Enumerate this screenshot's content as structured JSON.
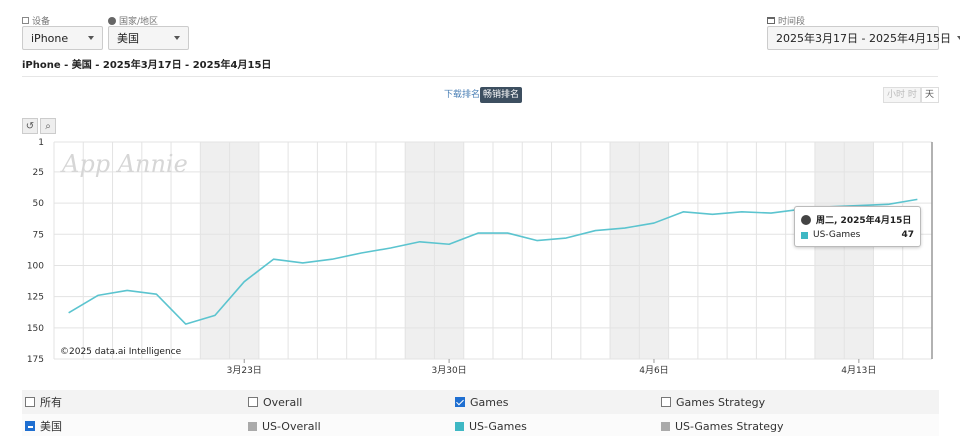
{
  "filters": {
    "device": {
      "label": "设备",
      "value": "iPhone",
      "icon": "checkbox-icon"
    },
    "country": {
      "label": "国家/地区",
      "value": "美国",
      "icon": "globe-icon"
    },
    "period": {
      "label": "时间段",
      "value": "2025年3月17日 - 2025年4月15日",
      "icon": "calendar-icon"
    }
  },
  "subtitle": "iPhone - 美国 - 2025年3月17日 - 2025年4月15日",
  "rank_toggle": {
    "download": "下载排名",
    "grossing": "畅销排名"
  },
  "granularity": {
    "hourly": "小时",
    "hourly_suffix": "时",
    "daily": "天"
  },
  "tools": {
    "reset": "reset-icon",
    "zoom": "zoom-icon"
  },
  "chart_data": {
    "type": "line",
    "title": "",
    "xlabel": "",
    "ylabel": "",
    "y_reversed": true,
    "ylim": [
      1,
      175
    ],
    "y_ticks": [
      1,
      25,
      50,
      75,
      100,
      125,
      150,
      175
    ],
    "x_tick_labels": [
      {
        "label": "3月23日",
        "day": 6
      },
      {
        "label": "3月30日",
        "day": 13
      },
      {
        "label": "4月6日",
        "day": 20
      },
      {
        "label": "4月13日",
        "day": 27
      }
    ],
    "weekend_day_ranges": [
      [
        5,
        7
      ],
      [
        12,
        14
      ],
      [
        19,
        21
      ],
      [
        26,
        28
      ]
    ],
    "dates": [
      "3/17",
      "3/18",
      "3/19",
      "3/20",
      "3/21",
      "3/22",
      "3/23",
      "3/24",
      "3/25",
      "3/26",
      "3/27",
      "3/28",
      "3/29",
      "3/30",
      "3/31",
      "4/1",
      "4/2",
      "4/3",
      "4/4",
      "4/5",
      "4/6",
      "4/7",
      "4/8",
      "4/9",
      "4/10",
      "4/11",
      "4/12",
      "4/13",
      "4/14",
      "4/15"
    ],
    "series": [
      {
        "name": "US-Games",
        "color": "#5bc4cf",
        "values": [
          138,
          124,
          120,
          123,
          147,
          140,
          113,
          95,
          98,
          95,
          90,
          86,
          81,
          83,
          74,
          74,
          80,
          78,
          72,
          70,
          66,
          57,
          59,
          57,
          58,
          55,
          53,
          52,
          51,
          47
        ]
      }
    ],
    "watermark": "App Annie",
    "credit": "©2025 data.ai Intelligence"
  },
  "tooltip": {
    "date": "周二, 2025年4月15日",
    "series": "US-Games",
    "value": "47",
    "swatch": "#3fb8c4"
  },
  "legend": {
    "row1": [
      {
        "label": "所有",
        "checked": false
      },
      {
        "label": "Overall",
        "checked": false
      },
      {
        "label": "Games",
        "checked": true
      },
      {
        "label": "Games Strategy",
        "checked": false
      }
    ],
    "row2": {
      "group": "美国",
      "items": [
        {
          "label": "US-Overall",
          "color": "#aaaaaa"
        },
        {
          "label": "US-Games",
          "color": "#3fb8c4"
        },
        {
          "label": "US-Games Strategy",
          "color": "#aaaaaa"
        }
      ]
    }
  },
  "colors": {
    "accent": "#1f6fd1",
    "toggle_active_bg": "#3d4f60",
    "weekend_band": "#efefef",
    "grid": "#e3e3e3"
  }
}
